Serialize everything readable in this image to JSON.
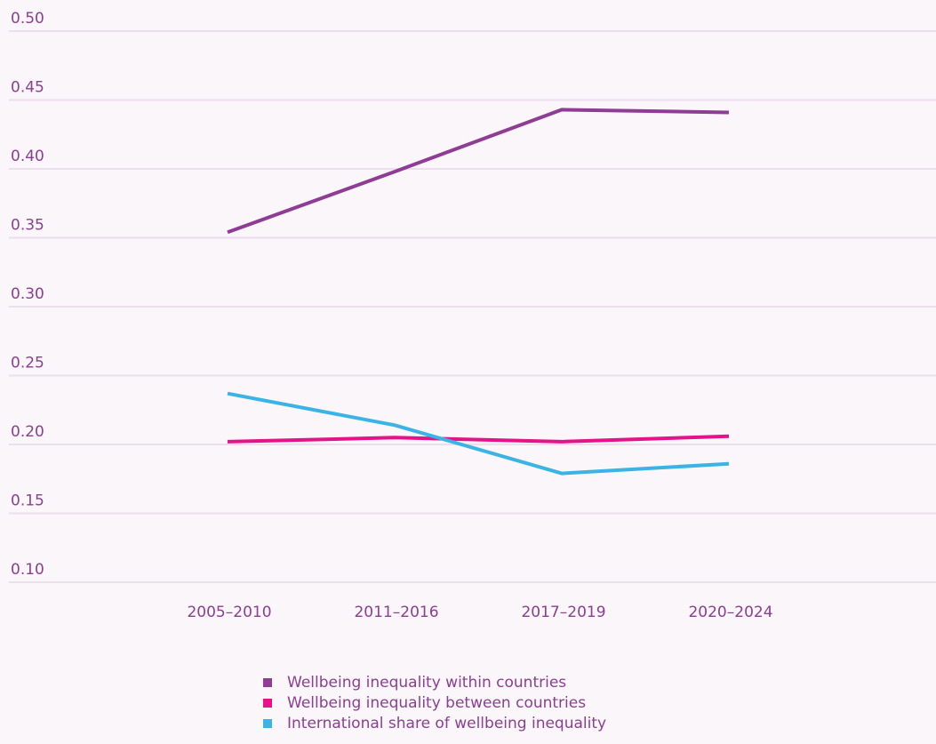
{
  "chart_data": {
    "type": "line",
    "title": "",
    "xlabel": "",
    "ylabel": "",
    "categories": [
      "2005–2010",
      "2011–2016",
      "2017–2019",
      "2020–2024"
    ],
    "y_ticks": [
      "0.10",
      "0.15",
      "0.20",
      "0.25",
      "0.30",
      "0.35",
      "0.40",
      "0.45",
      "0.50"
    ],
    "ylim": [
      0.1,
      0.5
    ],
    "grid": true,
    "legend_position": "bottom",
    "series": [
      {
        "name": "Wellbeing inequality within countries",
        "color": "#8e3c94",
        "values": [
          0.354,
          0.398,
          0.443,
          0.441
        ]
      },
      {
        "name": "Wellbeing inequality between countries",
        "color": "#e5138a",
        "values": [
          0.202,
          0.205,
          0.202,
          0.206
        ]
      },
      {
        "name": "International share of wellbeing inequality",
        "color": "#3bb4e5",
        "values": [
          0.237,
          0.214,
          0.179,
          0.186
        ]
      }
    ]
  }
}
